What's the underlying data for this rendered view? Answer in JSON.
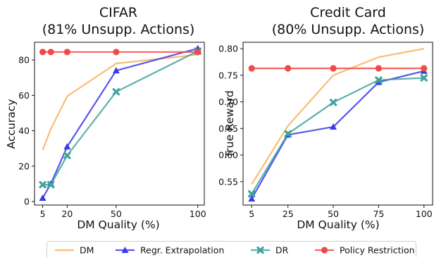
{
  "legend": {
    "placement": "bottom-center",
    "entries": [
      {
        "name": "DM",
        "color": "#F7B35A",
        "marker": "none"
      },
      {
        "name": "Regr. Extrapolation",
        "color": "#3A3AE8",
        "marker": "triangle"
      },
      {
        "name": "DR",
        "color": "#3FA39E",
        "marker": "x"
      },
      {
        "name": "Policy Restriction",
        "color": "#F24848",
        "marker": "circle"
      }
    ]
  },
  "chart_data": [
    {
      "type": "line",
      "title_line1": "CIFAR",
      "title_line2": "(81% Unsupp. Actions)",
      "xlabel": "DM Quality (%)",
      "ylabel": "Accuracy",
      "xticks": [
        5,
        20,
        50,
        100
      ],
      "yticks": [
        0,
        20,
        40,
        60,
        80
      ],
      "xlim": [
        0,
        104
      ],
      "ylim": [
        -2,
        90
      ],
      "grid": false,
      "series": [
        {
          "name": "DM",
          "x": [
            5,
            10,
            20,
            50,
            100
          ],
          "y": [
            29,
            41,
            59.5,
            78,
            83
          ]
        },
        {
          "name": "Regr. Extrapolation",
          "x": [
            5,
            10,
            20,
            50,
            100
          ],
          "y": [
            2,
            10,
            31,
            74,
            86.5
          ]
        },
        {
          "name": "DR",
          "x": [
            5,
            10,
            20,
            50,
            100
          ],
          "y": [
            9.5,
            9.5,
            26,
            62,
            85
          ]
        },
        {
          "name": "Policy Restriction",
          "x": [
            5,
            10,
            20,
            50,
            100
          ],
          "y": [
            84.5,
            84.5,
            84.5,
            84.5,
            84.5
          ]
        }
      ]
    },
    {
      "type": "line",
      "title_line1": "Credit Card",
      "title_line2": "(80% Unsupp. Actions)",
      "xlabel": "DM Quality (%)",
      "ylabel": "True Reward",
      "xticks": [
        5,
        25,
        50,
        75,
        100
      ],
      "yticks": [
        0.55,
        0.6,
        0.65,
        0.7,
        0.75,
        0.8
      ],
      "ytick_labels": [
        "0.55",
        "0.60",
        "0.65",
        "0.70",
        "0.75",
        "0.80"
      ],
      "xlim": [
        0.25,
        104.75
      ],
      "ylim": [
        0.506,
        0.812
      ],
      "grid": false,
      "series": [
        {
          "name": "DM",
          "x": [
            5,
            25,
            50,
            75,
            100
          ],
          "y": [
            0.545,
            0.655,
            0.75,
            0.784,
            0.8
          ]
        },
        {
          "name": "Regr. Extrapolation",
          "x": [
            5,
            25,
            50,
            75,
            100
          ],
          "y": [
            0.518,
            0.638,
            0.653,
            0.737,
            0.758
          ]
        },
        {
          "name": "DR",
          "x": [
            5,
            25,
            50,
            75,
            100
          ],
          "y": [
            0.527,
            0.64,
            0.699,
            0.741,
            0.745
          ]
        },
        {
          "name": "Policy Restriction",
          "x": [
            5,
            25,
            50,
            75,
            100
          ],
          "y": [
            0.763,
            0.763,
            0.763,
            0.763,
            0.763
          ]
        }
      ]
    }
  ]
}
